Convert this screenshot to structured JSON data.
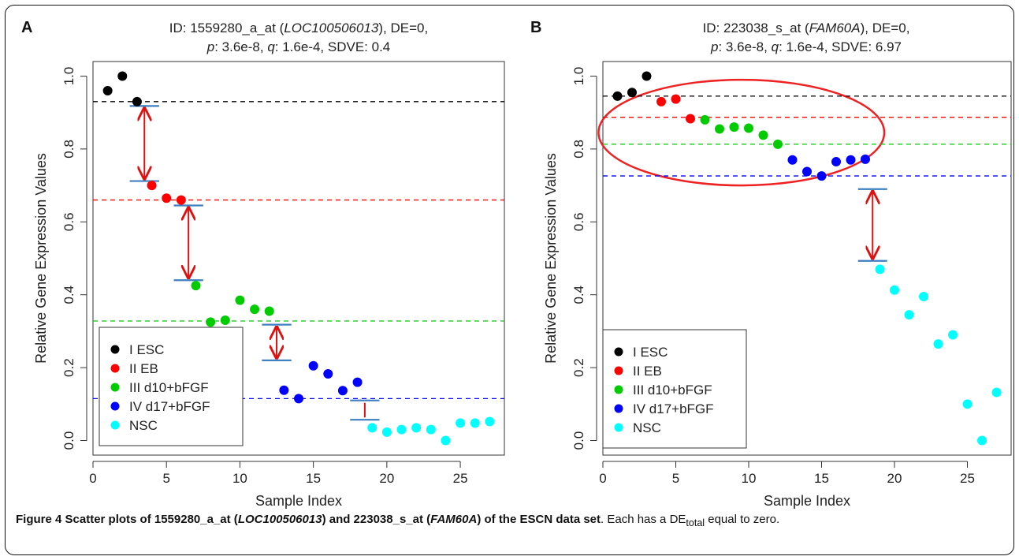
{
  "chart_data": [
    {
      "type": "scatter",
      "panel_label": "A",
      "title_parts": {
        "line1_pre": "ID: 1559280_a_at (",
        "gene": "LOC100506013",
        "line1_post": "), DE=0,",
        "p_label": "p",
        "p_value": ": 3.6e-8, ",
        "q_label": "q",
        "q_value": ": 1.6e-4, SDVE: 0.4"
      },
      "xlabel": "Sample Index",
      "ylabel": "Relative Gene Expression Values",
      "xlim": [
        0,
        28
      ],
      "ylim": [
        -0.04,
        1.04
      ],
      "xticks": [
        0,
        5,
        10,
        15,
        20,
        25
      ],
      "yticks": [
        0.0,
        0.2,
        0.4,
        0.6,
        0.8,
        1.0
      ],
      "xtick_labels": [
        "0",
        "5",
        "10",
        "15",
        "20",
        "25"
      ],
      "ytick_labels": [
        "0.0",
        "0.2",
        "0.4",
        "0.6",
        "0.8",
        "1.0"
      ],
      "legend_position": "bottom-left",
      "series": [
        {
          "name": "I ESC",
          "color": "#000000",
          "x": [
            1,
            2,
            3
          ],
          "y": [
            0.96,
            1.0,
            0.93
          ]
        },
        {
          "name": "II EB",
          "color": "#ff0000",
          "x": [
            4,
            5,
            6
          ],
          "y": [
            0.7,
            0.665,
            0.66
          ]
        },
        {
          "name": "III d10+bFGF",
          "color": "#00cc00",
          "x": [
            7,
            8,
            9,
            10,
            11,
            12
          ],
          "y": [
            0.425,
            0.325,
            0.33,
            0.385,
            0.36,
            0.355
          ]
        },
        {
          "name": "IV d17+bFGF",
          "color": "#0000ff",
          "x": [
            13,
            14,
            15,
            16,
            17,
            18
          ],
          "y": [
            0.138,
            0.115,
            0.205,
            0.183,
            0.137,
            0.16
          ]
        },
        {
          "name": "NSC",
          "color": "#00ffff",
          "x": [
            19,
            20,
            21,
            22,
            23,
            24,
            25,
            26,
            27
          ],
          "y": [
            0.035,
            0.023,
            0.03,
            0.035,
            0.03,
            0.0,
            0.048,
            0.048,
            0.052
          ]
        }
      ],
      "hlines": [
        {
          "y": 0.93,
          "color": "#000000"
        },
        {
          "y": 0.66,
          "color": "#ff0000"
        },
        {
          "y": 0.328,
          "color": "#00cc00"
        },
        {
          "y": 0.115,
          "color": "#0000ff"
        }
      ],
      "gap_markers": [
        {
          "x0": 2.5,
          "x1": 4.5,
          "y_top": 0.918,
          "y_bottom": 0.712,
          "arrow": "double"
        },
        {
          "x0": 5.5,
          "x1": 7.5,
          "y_top": 0.645,
          "y_bottom": 0.44,
          "arrow": "double"
        },
        {
          "x0": 11.5,
          "x1": 13.5,
          "y_top": 0.318,
          "y_bottom": 0.22,
          "arrow": "double"
        },
        {
          "x0": 17.5,
          "x1": 19.5,
          "y_top": 0.11,
          "y_bottom": 0.057,
          "arrow": "none"
        }
      ]
    },
    {
      "type": "scatter",
      "panel_label": "B",
      "title_parts": {
        "line1_pre": "ID: 223038_s_at (",
        "gene": "FAM60A",
        "line1_post": "), DE=0,",
        "p_label": "p",
        "p_value": ": 3.6e-8, ",
        "q_label": "q",
        "q_value": ": 1.6e-4, SDVE: 6.97"
      },
      "xlabel": "Sample Index",
      "ylabel": "Relative Gene Expression Values",
      "xlim": [
        0,
        28
      ],
      "ylim": [
        -0.04,
        1.04
      ],
      "xticks": [
        0,
        5,
        10,
        15,
        20,
        25
      ],
      "yticks": [
        0.0,
        0.2,
        0.4,
        0.6,
        0.8,
        1.0
      ],
      "xtick_labels": [
        "0",
        "5",
        "10",
        "15",
        "20",
        "25"
      ],
      "ytick_labels": [
        "0.0",
        "0.2",
        "0.4",
        "0.6",
        "0.8",
        "1.0"
      ],
      "legend_position": "bottom-left",
      "series": [
        {
          "name": "I ESC",
          "color": "#000000",
          "x": [
            1,
            2,
            3
          ],
          "y": [
            0.945,
            0.955,
            1.0
          ]
        },
        {
          "name": "II EB",
          "color": "#ff0000",
          "x": [
            4,
            5,
            6
          ],
          "y": [
            0.93,
            0.937,
            0.883
          ]
        },
        {
          "name": "III d10+bFGF",
          "color": "#00cc00",
          "x": [
            7,
            8,
            9,
            10,
            11,
            12
          ],
          "y": [
            0.88,
            0.855,
            0.86,
            0.857,
            0.838,
            0.813
          ]
        },
        {
          "name": "IV d17+bFGF",
          "color": "#0000ff",
          "x": [
            13,
            14,
            15,
            16,
            17,
            18
          ],
          "y": [
            0.77,
            0.738,
            0.726,
            0.765,
            0.77,
            0.772
          ]
        },
        {
          "name": "NSC",
          "color": "#00ffff",
          "x": [
            19,
            20,
            21,
            22,
            23,
            24,
            25,
            26,
            27
          ],
          "y": [
            0.47,
            0.413,
            0.345,
            0.395,
            0.265,
            0.29,
            0.1,
            0.0,
            0.132
          ]
        }
      ],
      "hlines": [
        {
          "y": 0.945,
          "color": "#000000"
        },
        {
          "y": 0.887,
          "color": "#ff0000"
        },
        {
          "y": 0.813,
          "color": "#00cc00"
        },
        {
          "y": 0.726,
          "color": "#0000ff"
        }
      ],
      "gap_markers": [
        {
          "x0": 17.5,
          "x1": 19.5,
          "y_top": 0.69,
          "y_bottom": 0.493,
          "arrow": "double"
        }
      ],
      "highlight_ellipse": {
        "cx": 9.5,
        "cy": 0.845,
        "rx": 9.8,
        "ry": 0.145,
        "color": "#ee2222"
      }
    }
  ],
  "caption": {
    "figure_label": "Figure 4",
    "bold_pre": " Scatter plots of 1559280_a_at (",
    "gene1": "LOC100506013",
    "bold_mid": ") and 223038_s_at (",
    "gene2": "FAM60A",
    "bold_post": ") of the ESCN data set",
    "rest_pre": ". Each has a DE",
    "rest_sub": "total",
    "rest_post": " equal to zero."
  }
}
